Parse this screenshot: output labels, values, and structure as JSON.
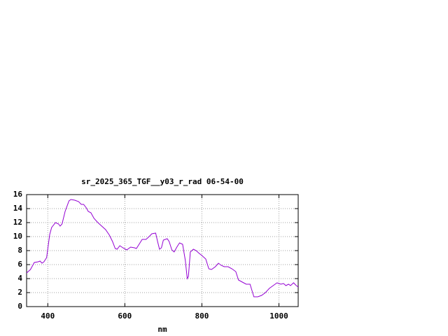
{
  "chart_data": {
    "type": "line",
    "title": "sr_2025_365_TGF__y03_r_rad 06-54-00",
    "x_label": "nm",
    "xlim": [
      345,
      1050
    ],
    "xticks": [
      400,
      600,
      800,
      1000
    ],
    "ylim": [
      0,
      16
    ],
    "yticks": [
      0,
      2,
      4,
      6,
      8,
      10,
      12,
      14,
      16
    ],
    "grid": true,
    "series": [
      {
        "color": "#9400d3",
        "x": [
          345,
          355,
          365,
          375,
          380,
          385,
          390,
          397,
          405,
          410,
          420,
          428,
          432,
          437,
          445,
          455,
          460,
          470,
          480,
          487,
          493,
          500,
          505,
          512,
          520,
          530,
          540,
          550,
          560,
          568,
          575,
          580,
          587,
          595,
          605,
          615,
          625,
          630,
          637,
          645,
          655,
          663,
          670,
          680,
          685,
          690,
          695,
          700,
          710,
          715,
          722,
          728,
          735,
          742,
          750,
          757,
          762,
          765,
          770,
          778,
          785,
          793,
          800,
          810,
          818,
          825,
          835,
          843,
          850,
          858,
          868,
          878,
          888,
          895,
          905,
          915,
          925,
          930,
          935,
          945,
          955,
          965,
          975,
          985,
          995,
          1005,
          1012,
          1018,
          1025,
          1030,
          1038,
          1045,
          1050
        ],
        "values": [
          4.8,
          5.3,
          6.3,
          6.4,
          6.5,
          6.2,
          6.4,
          7.0,
          10.3,
          11.3,
          12.0,
          11.8,
          11.5,
          11.8,
          13.6,
          15.1,
          15.3,
          15.2,
          15.0,
          14.6,
          14.6,
          14.1,
          13.6,
          13.4,
          12.6,
          12.0,
          11.5,
          11.0,
          10.2,
          9.3,
          8.3,
          8.2,
          8.7,
          8.4,
          8.1,
          8.5,
          8.4,
          8.3,
          8.9,
          9.6,
          9.6,
          10.0,
          10.4,
          10.5,
          9.3,
          8.2,
          8.4,
          9.5,
          9.7,
          9.3,
          8.1,
          7.8,
          8.5,
          9.1,
          8.9,
          6.6,
          4.0,
          4.3,
          7.8,
          8.2,
          8.0,
          7.6,
          7.3,
          6.8,
          5.4,
          5.3,
          5.7,
          6.2,
          5.9,
          5.7,
          5.7,
          5.4,
          5.0,
          3.8,
          3.5,
          3.2,
          3.2,
          2.3,
          1.4,
          1.4,
          1.6,
          2.0,
          2.6,
          3.0,
          3.4,
          3.2,
          3.3,
          3.0,
          3.2,
          3.0,
          3.4,
          3.0,
          2.8
        ]
      }
    ]
  }
}
